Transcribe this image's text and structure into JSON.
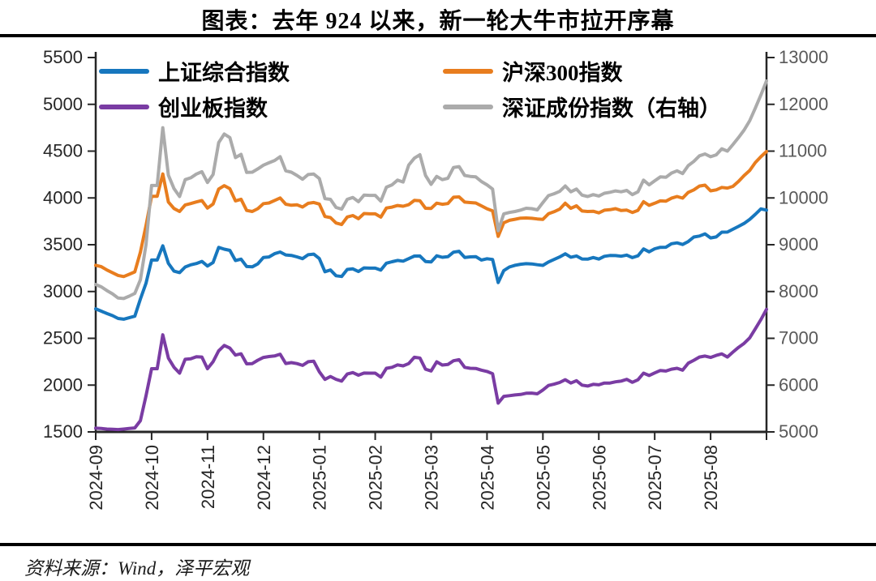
{
  "title": "图表：去年 924 以来，新一轮大牛市拉开序幕",
  "source": "资料来源：Wind，泽平宏观",
  "chart_data": {
    "type": "line",
    "title": "图表：去年 924 以来，新一轮大牛市拉开序幕",
    "x_labels": [
      "2024-09",
      "2024-10",
      "2024-11",
      "2024-12",
      "2025-01",
      "2025-02",
      "2025-03",
      "2025-04",
      "2025-05",
      "2025-06",
      "2025-07",
      "2025-08"
    ],
    "x_months_span": 12,
    "grid": false,
    "legend_position": "top-inside",
    "y_left": {
      "min": 1500,
      "max": 5500,
      "step": 500,
      "ticks": [
        "1500",
        "2000",
        "2500",
        "3000",
        "3500",
        "4000",
        "4500",
        "5000",
        "5500"
      ],
      "label_color": "#262626"
    },
    "y_right": {
      "min": 5000,
      "max": 13000,
      "step": 1000,
      "ticks": [
        "5000",
        "6000",
        "7000",
        "8000",
        "9000",
        "10000",
        "11000",
        "12000",
        "13000"
      ],
      "label_color": "#595959"
    },
    "axis_color": "#262626",
    "series": [
      {
        "name": "上证综合指数",
        "color": "#1777BE",
        "axis": "left",
        "values": [
          2815,
          2790,
          2765,
          2742,
          2712,
          2704,
          2720,
          2736,
          2920,
          3088,
          3336,
          3336,
          3489,
          3301,
          3218,
          3202,
          3262,
          3285,
          3299,
          3322,
          3272,
          3310,
          3471,
          3452,
          3439,
          3331,
          3346,
          3267,
          3264,
          3296,
          3364,
          3369,
          3404,
          3422,
          3391,
          3386,
          3370,
          3351,
          3393,
          3400,
          3352,
          3212,
          3230,
          3168,
          3161,
          3236,
          3242,
          3213,
          3252,
          3250,
          3250,
          3229,
          3303,
          3318,
          3332,
          3324,
          3351,
          3379,
          3380,
          3321,
          3316,
          3381,
          3366,
          3372,
          3420,
          3430,
          3364,
          3370,
          3373,
          3336,
          3350,
          3342,
          3096,
          3224,
          3262,
          3280,
          3291,
          3297,
          3295,
          3286,
          3279,
          3316,
          3342,
          3369,
          3403,
          3367,
          3380,
          3348,
          3346,
          3363,
          3347,
          3376,
          3385,
          3384,
          3377,
          3389,
          3362,
          3381,
          3455,
          3424,
          3457,
          3472,
          3473,
          3510,
          3520,
          3503,
          3534,
          3582,
          3593,
          3616,
          3573,
          3583,
          3634,
          3635,
          3665,
          3696,
          3728,
          3771,
          3825,
          3883,
          3870
        ]
      },
      {
        "name": "沪深300指数",
        "color": "#E87D1E",
        "axis": "left",
        "values": [
          3280,
          3265,
          3230,
          3200,
          3172,
          3160,
          3184,
          3210,
          3420,
          3704,
          4018,
          4018,
          4256,
          3956,
          3887,
          3855,
          3925,
          3940,
          3957,
          3972,
          3891,
          3935,
          4095,
          4131,
          4098,
          3968,
          3986,
          3866,
          3855,
          3885,
          3939,
          3946,
          3973,
          4000,
          3933,
          3922,
          3927,
          3903,
          3942,
          3951,
          3935,
          3801,
          3790,
          3732,
          3716,
          3796,
          3812,
          3778,
          3833,
          3830,
          3830,
          3795,
          3892,
          3902,
          3919,
          3911,
          3928,
          3974,
          3970,
          3890,
          3888,
          3944,
          3932,
          3940,
          4007,
          4011,
          3955,
          3950,
          3946,
          3916,
          3884,
          3862,
          3589,
          3735,
          3761,
          3772,
          3784,
          3786,
          3782,
          3775,
          3771,
          3831,
          3852,
          3880,
          3943,
          3889,
          3916,
          3860,
          3855,
          3858,
          3840,
          3869,
          3874,
          3885,
          3865,
          3870,
          3845,
          3867,
          3960,
          3921,
          3943,
          3968,
          3965,
          3997,
          4015,
          3998,
          4059,
          4086,
          4127,
          4136,
          4076,
          4086,
          4112,
          4105,
          4123,
          4176,
          4239,
          4293,
          4378,
          4440,
          4496
        ]
      },
      {
        "name": "创业板指数",
        "color": "#7A3CA3",
        "axis": "left",
        "values": [
          1540,
          1536,
          1530,
          1528,
          1525,
          1530,
          1536,
          1542,
          1620,
          1885,
          2175,
          2175,
          2537,
          2289,
          2191,
          2128,
          2276,
          2281,
          2303,
          2300,
          2175,
          2250,
          2367,
          2424,
          2395,
          2321,
          2335,
          2227,
          2230,
          2266,
          2296,
          2305,
          2311,
          2330,
          2231,
          2240,
          2230,
          2211,
          2250,
          2255,
          2142,
          2061,
          2092,
          2062,
          2043,
          2118,
          2134,
          2106,
          2129,
          2128,
          2128,
          2085,
          2180,
          2190,
          2216,
          2206,
          2230,
          2297,
          2290,
          2170,
          2151,
          2249,
          2214,
          2220,
          2260,
          2271,
          2190,
          2180,
          2178,
          2160,
          2146,
          2122,
          1807,
          1880,
          1887,
          1895,
          1900,
          1913,
          1915,
          1907,
          1948,
          1996,
          2010,
          2028,
          2058,
          2022,
          2047,
          2000,
          1990,
          2008,
          2003,
          2022,
          2022,
          2035,
          2043,
          2062,
          2030,
          2057,
          2128,
          2103,
          2130,
          2156,
          2150,
          2170,
          2180,
          2160,
          2234,
          2265,
          2300,
          2310,
          2296,
          2317,
          2334,
          2300,
          2353,
          2403,
          2446,
          2505,
          2601,
          2700,
          2810
        ]
      },
      {
        "name": "深证成份指数（右轴）",
        "color": "#ABABAB",
        "axis": "right",
        "values": [
          8150,
          8100,
          8020,
          7950,
          7860,
          7850,
          7900,
          7960,
          8250,
          9001,
          10265,
          10265,
          11500,
          10486,
          10200,
          10031,
          10390,
          10430,
          10510,
          10560,
          10330,
          10500,
          11182,
          11366,
          11289,
          10862,
          10930,
          10544,
          10550,
          10620,
          10700,
          10750,
          10800,
          10880,
          10580,
          10550,
          10480,
          10400,
          10500,
          10510,
          10415,
          9985,
          9970,
          9796,
          9761,
          9970,
          10010,
          9920,
          10060,
          10055,
          10055,
          9930,
          10230,
          10280,
          10380,
          10340,
          10700,
          10850,
          10924,
          10480,
          10290,
          10460,
          10390,
          10420,
          10650,
          10670,
          10480,
          10460,
          10450,
          10350,
          10280,
          10190,
          9300,
          9660,
          9690,
          9710,
          9740,
          9780,
          9770,
          9745,
          9900,
          10050,
          10090,
          10140,
          10255,
          10130,
          10190,
          10060,
          10030,
          10070,
          10040,
          10100,
          10120,
          10150,
          10130,
          10160,
          10070,
          10130,
          10380,
          10280,
          10366,
          10450,
          10440,
          10530,
          10580,
          10520,
          10690,
          10780,
          10900,
          10940,
          10880,
          10920,
          11050,
          11000,
          11140,
          11290,
          11450,
          11650,
          11920,
          12200,
          12500
        ]
      }
    ]
  }
}
